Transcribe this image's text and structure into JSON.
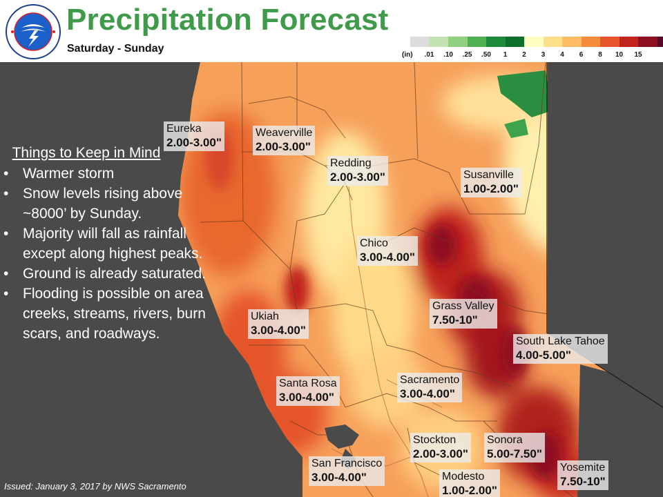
{
  "header": {
    "logo_text": "NATIONAL WEATHER SERVICE",
    "title": "Precipitation Forecast",
    "subtitle": "Saturday - Sunday"
  },
  "legend": {
    "unit": "(in)",
    "ticks": [
      ".01",
      ".10",
      ".25",
      ".50",
      "1",
      "2",
      "3",
      "4",
      "6",
      "8",
      "10",
      "15"
    ],
    "colors": [
      "#dcdcdc",
      "#c4e3b0",
      "#8fd080",
      "#4fb052",
      "#1d8a3a",
      "#0d6f2b",
      "#ffffc4",
      "#ffe08a",
      "#ffbb66",
      "#f58c3c",
      "#e5552b",
      "#c0241d",
      "#8f1020",
      "#5a0a28",
      "#2c0630"
    ]
  },
  "notes": {
    "title": "Things to Keep in Mind",
    "items": [
      "Warmer storm",
      "Snow levels rising above ~8000’ by Sunday.",
      "Majority will fall as rainfall except along highest peaks.",
      "Ground is already saturated.",
      "Flooding is possible on area creeks, streams, rivers, burn scars, and roadways."
    ]
  },
  "locations": [
    {
      "name": "Eureka",
      "amount": "2.00-3.00\""
    },
    {
      "name": "Weaverville",
      "amount": "2.00-3.00\""
    },
    {
      "name": "Redding",
      "amount": "2.00-3.00\""
    },
    {
      "name": "Susanville",
      "amount": "1.00-2.00\""
    },
    {
      "name": "Chico",
      "amount": "3.00-4.00\""
    },
    {
      "name": "Grass Valley",
      "amount": "7.50-10\""
    },
    {
      "name": "South Lake Tahoe",
      "amount": "4.00-5.00\""
    },
    {
      "name": "Ukiah",
      "amount": "3.00-4.00\""
    },
    {
      "name": "Santa Rosa",
      "amount": "3.00-4.00\""
    },
    {
      "name": "Sacramento",
      "amount": "3.00-4.00\""
    },
    {
      "name": "Stockton",
      "amount": "2.00-3.00\""
    },
    {
      "name": "Sonora",
      "amount": "5.00-7.50\""
    },
    {
      "name": "San Francisco",
      "amount": "3.00-4.00\""
    },
    {
      "name": "Modesto",
      "amount": "1.00-2.00\""
    },
    {
      "name": "Yosemite",
      "amount": "7.50-10\""
    }
  ],
  "footer": {
    "issued": "Issued: January 3, 2017 by NWS Sacramento"
  },
  "colors": {
    "title_green": "#3f9a4a",
    "ocean": "#4a4a4a",
    "nevada": "#4a4a4a"
  }
}
